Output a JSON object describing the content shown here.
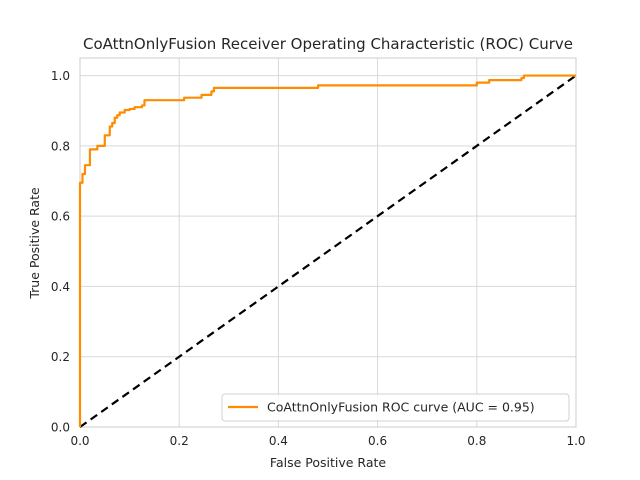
{
  "chart_data": {
    "type": "line",
    "title": "CoAttnOnlyFusion Receiver Operating Characteristic (ROC) Curve",
    "xlabel": "False Positive Rate",
    "ylabel": "True Positive Rate",
    "xlim": [
      0,
      1
    ],
    "ylim": [
      0,
      1.05
    ],
    "xticks": [
      0.0,
      0.2,
      0.4,
      0.6,
      0.8,
      1.0
    ],
    "yticks": [
      0.0,
      0.2,
      0.4,
      0.6,
      0.8,
      1.0
    ],
    "xtick_labels": [
      "0.0",
      "0.2",
      "0.4",
      "0.6",
      "0.8",
      "1.0"
    ],
    "ytick_labels": [
      "0.0",
      "0.2",
      "0.4",
      "0.6",
      "0.8",
      "1.0"
    ],
    "grid": true,
    "legend_position": "lower-right",
    "series": [
      {
        "name": "CoAttnOnlyFusion ROC curve (AUC = 0.95)",
        "color": "#ff8c00",
        "style": "solid",
        "x": [
          0,
          0,
          0.005,
          0.005,
          0.01,
          0.01,
          0.02,
          0.02,
          0.035,
          0.035,
          0.05,
          0.05,
          0.06,
          0.06,
          0.065,
          0.065,
          0.07,
          0.07,
          0.075,
          0.075,
          0.08,
          0.08,
          0.09,
          0.09,
          0.1,
          0.1,
          0.11,
          0.11,
          0.125,
          0.125,
          0.13,
          0.13,
          0.21,
          0.21,
          0.245,
          0.245,
          0.265,
          0.265,
          0.27,
          0.27,
          0.48,
          0.48,
          0.8,
          0.8,
          0.825,
          0.825,
          0.89,
          0.89,
          0.895,
          0.895,
          1.0
        ],
        "y": [
          0,
          0.695,
          0.695,
          0.72,
          0.72,
          0.745,
          0.745,
          0.79,
          0.79,
          0.8,
          0.8,
          0.83,
          0.83,
          0.855,
          0.855,
          0.865,
          0.865,
          0.88,
          0.88,
          0.887,
          0.887,
          0.895,
          0.895,
          0.902,
          0.902,
          0.905,
          0.905,
          0.91,
          0.91,
          0.915,
          0.915,
          0.93,
          0.93,
          0.937,
          0.937,
          0.945,
          0.945,
          0.955,
          0.955,
          0.965,
          0.965,
          0.972,
          0.972,
          0.98,
          0.98,
          0.987,
          0.987,
          0.993,
          0.993,
          1.0,
          1.0
        ]
      },
      {
        "name": "",
        "color": "#000000",
        "style": "dashed",
        "x": [
          0,
          1
        ],
        "y": [
          0,
          1
        ]
      }
    ]
  }
}
